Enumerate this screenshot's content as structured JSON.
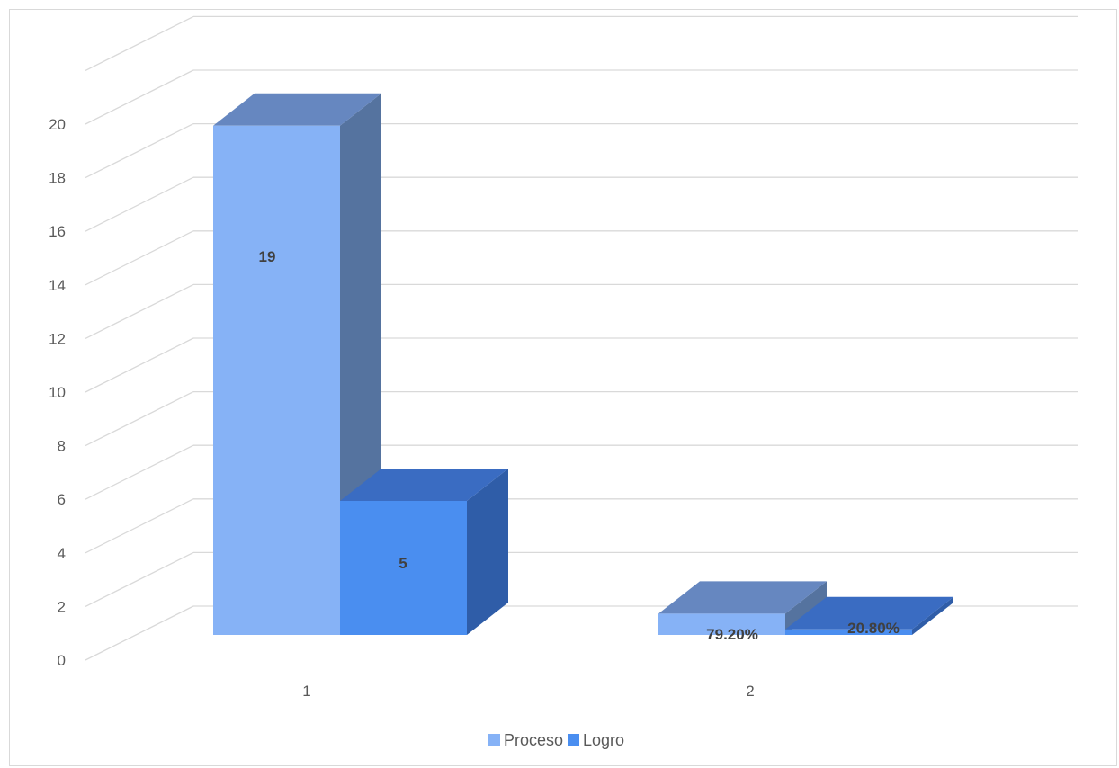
{
  "chart_data": {
    "type": "bar",
    "style": "3d-column",
    "categories": [
      "1",
      "2"
    ],
    "series": [
      {
        "name": "Proceso",
        "values": [
          19,
          0.792
        ],
        "labels": [
          "19",
          "79.20%"
        ],
        "color": "#86b2f6"
      },
      {
        "name": "Logro",
        "values": [
          5,
          0.208
        ],
        "labels": [
          "5",
          "20.80%"
        ],
        "color": "#4a8ef0"
      }
    ],
    "yticks": [
      "0",
      "2",
      "4",
      "6",
      "8",
      "10",
      "12",
      "14",
      "16",
      "18",
      "20"
    ],
    "ylim": [
      0,
      22
    ],
    "grid": true,
    "legend": "bottom"
  }
}
